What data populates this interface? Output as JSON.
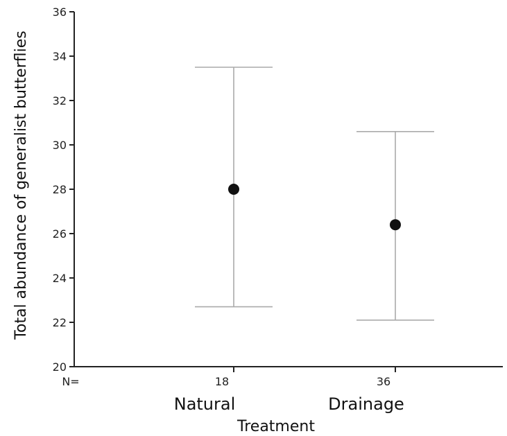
{
  "chart_data": {
    "type": "errorbar",
    "ylabel": "Total abundance of generalist butterflies",
    "xlabel": "Treatment",
    "ylim": [
      20,
      36
    ],
    "yticks": [
      20,
      22,
      24,
      26,
      28,
      30,
      32,
      34,
      36
    ],
    "n_prefix": "N=",
    "categories": [
      "Natural",
      "Drainage"
    ],
    "n_values": [
      "18",
      "36"
    ],
    "means": [
      28.0,
      26.4
    ],
    "upper": [
      33.5,
      30.6
    ],
    "lower": [
      22.7,
      22.1
    ],
    "grid": false,
    "colors": {
      "marker": "#111111",
      "errorbar": "#aaaaaa",
      "axis": "#222222"
    }
  }
}
